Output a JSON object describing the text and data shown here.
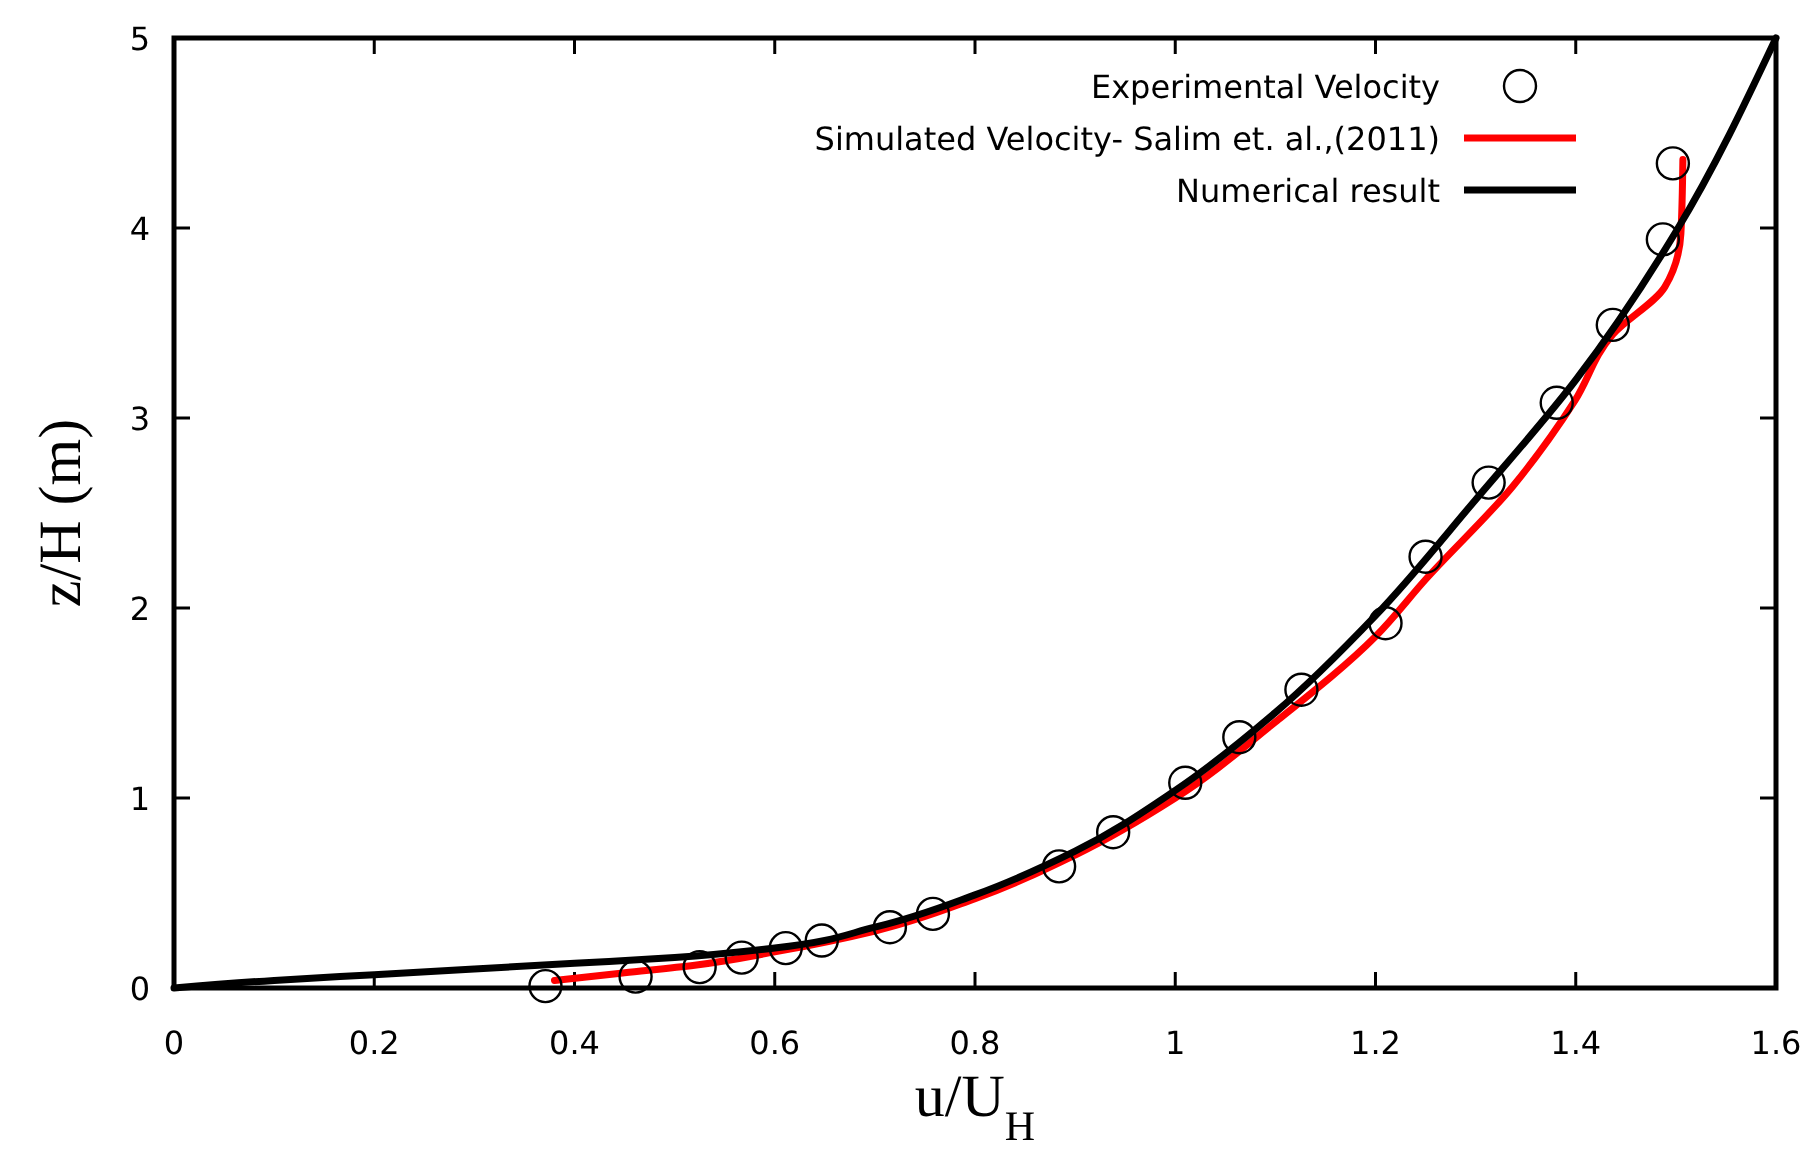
{
  "chart_data": {
    "type": "line",
    "xlabel": "u/U$_{H}$",
    "ylabel": "z/H (m)",
    "xlim": [
      0,
      1.6
    ],
    "ylim": [
      0,
      5
    ],
    "xticks": [
      0,
      0.2,
      0.4,
      0.6,
      0.8,
      1,
      1.2,
      1.4,
      1.6
    ],
    "yticks": [
      0,
      1,
      2,
      3,
      4,
      5
    ],
    "grid": false,
    "legend": "top right",
    "series": [
      {
        "name": "Experimental Velocity",
        "type": "scatter",
        "marker": "circle",
        "color": "#000000",
        "x": [
          0.371,
          0.461,
          0.525,
          0.567,
          0.611,
          0.647,
          0.715,
          0.758,
          0.884,
          0.938,
          1.01,
          1.064,
          1.126,
          1.21,
          1.25,
          1.313,
          1.381,
          1.437,
          1.487,
          1.497
        ],
        "values": [
          0.01,
          0.06,
          0.11,
          0.16,
          0.21,
          0.25,
          0.32,
          0.39,
          0.64,
          0.82,
          1.08,
          1.32,
          1.57,
          1.92,
          2.27,
          2.66,
          3.08,
          3.49,
          3.94,
          4.34
        ]
      },
      {
        "name": "Simulated Velocity- Salim et. al.,(2011)",
        "type": "line",
        "marker": "none",
        "color": "#ff0000",
        "x": [
          0.38,
          0.45,
          0.52,
          0.6,
          0.7,
          0.8,
          0.9,
          1.0,
          1.1,
          1.2,
          1.25,
          1.337,
          1.399,
          1.437,
          1.489,
          1.505,
          1.507
        ],
        "values": [
          0.04,
          0.08,
          0.12,
          0.19,
          0.3,
          0.47,
          0.7,
          1.0,
          1.4,
          1.85,
          2.15,
          2.64,
          3.09,
          3.44,
          3.69,
          3.97,
          4.36
        ]
      },
      {
        "name": "Numerical result",
        "marker": "none",
        "color": "#000000",
        "x": [
          0,
          0.1,
          0.2,
          0.3,
          0.4,
          0.5,
          0.6,
          0.7,
          0.8,
          0.9,
          1.0,
          1.1,
          1.2,
          1.3,
          1.4,
          1.5,
          1.6
        ],
        "values": [
          0,
          0.04,
          0.07,
          0.1,
          0.13,
          0.16,
          0.21,
          0.32,
          0.49,
          0.72,
          1.04,
          1.45,
          1.96,
          2.57,
          3.2,
          3.98,
          5.0
        ]
      }
    ]
  }
}
